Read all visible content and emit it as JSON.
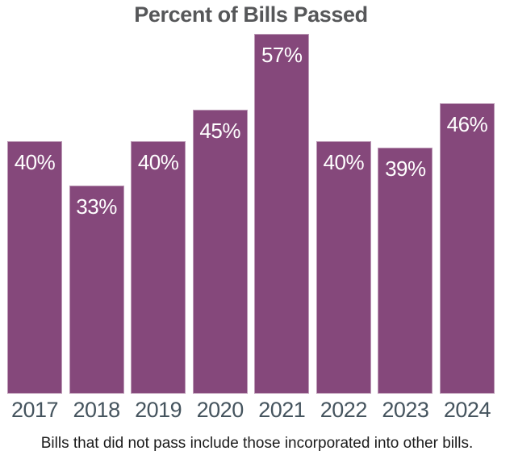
{
  "chart_data": {
    "type": "bar",
    "title": "Percent of Bills Passed",
    "categories": [
      "2017",
      "2018",
      "2019",
      "2020",
      "2021",
      "2022",
      "2023",
      "2024"
    ],
    "values": [
      40,
      33,
      40,
      45,
      57,
      40,
      39,
      46
    ],
    "bar_labels": [
      "40%",
      "33%",
      "40%",
      "45%",
      "57%",
      "40%",
      "39%",
      "46%"
    ],
    "xlabel": "",
    "ylabel": "",
    "ylim": [
      0,
      57
    ],
    "grid": false,
    "legend": false,
    "value_label_position": "inside-top",
    "footnote": "Bills that did not pass include those incorporated into other bills.",
    "colors": {
      "bar": "#85487B",
      "bar_edge": "rgba(255,255,255,0.45)",
      "title": "#565759",
      "year_labels": "#45545E",
      "value_labels": "#FFFFFF",
      "footnote": "#1C1C1C",
      "background": "#FFFFFF"
    }
  }
}
